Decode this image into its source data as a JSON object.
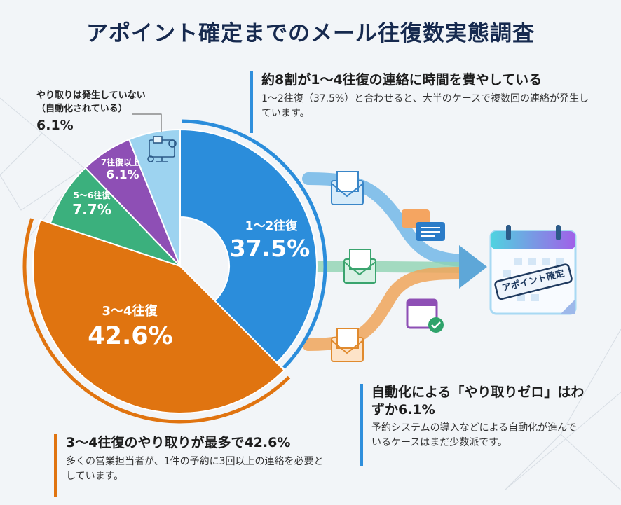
{
  "title": "アポイント確定までのメール往復数実態調査",
  "chart_data": {
    "type": "pie",
    "categories": [
      "1〜2往復",
      "3〜4往復",
      "5〜6往復",
      "7往復以上",
      "やり取りは発生していない（自動化されている）"
    ],
    "values": [
      37.5,
      42.6,
      7.7,
      6.1,
      6.1
    ],
    "value_labels": [
      "37.5%",
      "42.6%",
      "7.7%",
      "6.1%",
      "6.1%"
    ],
    "colors": [
      "#2b8ddb",
      "#e07410",
      "#3bb07d",
      "#8e4fb5",
      "#9dd3f0"
    ],
    "unit": "%"
  },
  "callout": {
    "line1": "やり取りは発生していない",
    "line2": "（自動化されている）",
    "value": "6.1%"
  },
  "notes": [
    {
      "heading": "約8割が1〜4往復の連絡に時間を費やしている",
      "body": "1〜2往復（37.5%）と合わせると、大半のケースで複数回の連絡が発生しています。",
      "color": "#2f8fdc"
    },
    {
      "heading": "自動化による「やり取りゼロ」はわずか6.1%",
      "body": "予約システムの導入などによる自動化が進んでいるケースはまだ少数派です。",
      "color": "#2f8fdc"
    },
    {
      "heading": "3〜4往復のやり取りが最多で42.6%",
      "body": "多くの営業担当者が、1件の予約に3回以上の連絡を必要としています。",
      "color": "#e07410"
    }
  ],
  "calendar_stamp": "アポイント確定",
  "icons": [
    "automation-computer-icon",
    "mail-icon",
    "chat-bubbles-icon",
    "calendar-check-icon",
    "calendar-icon",
    "arrow-icon"
  ]
}
